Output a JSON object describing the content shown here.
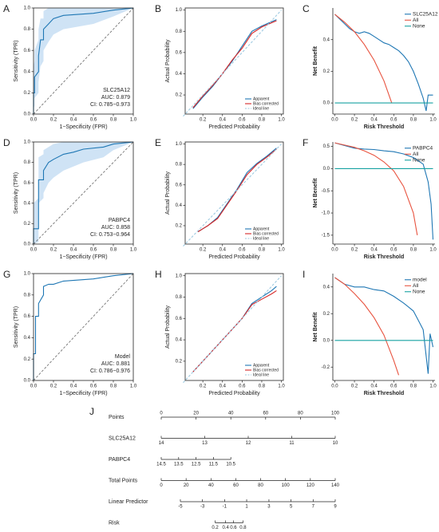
{
  "chart_data": [
    {
      "type": "roc",
      "panel": "A",
      "xlabel": "1−Specificity (FPR)",
      "ylabel": "Sensitivity (TPR)",
      "xlim": [
        0,
        1
      ],
      "ylim": [
        0,
        1
      ],
      "xticks": [
        {
          "value": 0,
          "label": "0.0"
        },
        0.2,
        0.4,
        0.6,
        0.8,
        {
          "value": 1,
          "label": "1.0"
        }
      ],
      "yticks": [
        {
          "value": 0,
          "label": "0.0"
        },
        0.2,
        0.4,
        0.6,
        0.8,
        {
          "value": 1,
          "label": "1.0"
        }
      ],
      "color": "#1f77b4",
      "band_color": "#cfe3f5",
      "x": [
        0,
        0,
        0.01,
        0.01,
        0.05,
        0.05,
        0.07,
        0.1,
        0.1,
        0.15,
        0.2,
        0.3,
        0.6,
        0.8,
        1
      ],
      "values": [
        0,
        0.2,
        0.2,
        0.35,
        0.4,
        0.55,
        0.7,
        0.7,
        0.8,
        0.85,
        0.9,
        0.93,
        0.95,
        0.98,
        1
      ],
      "band_lower": [
        0,
        0.05,
        0.08,
        0.15,
        0.2,
        0.3,
        0.45,
        0.5,
        0.6,
        0.68,
        0.75,
        0.8,
        0.85,
        0.92,
        1
      ],
      "band_upper": [
        0,
        0.45,
        0.5,
        0.6,
        0.7,
        0.8,
        0.9,
        0.9,
        0.97,
        1,
        1,
        1,
        1,
        1,
        1
      ],
      "annotations": [
        "SLC25A12",
        "AUC: 0.879",
        "CI: 0.785−0.973"
      ]
    },
    {
      "type": "calibration",
      "panel": "B",
      "xlabel": "Predicted Probability",
      "ylabel": "Actual Probability",
      "xlim": [
        0.02,
        1.02
      ],
      "ylim": [
        0.02,
        1.02
      ],
      "xticks": [
        0.2,
        0.4,
        0.6,
        0.8,
        {
          "value": 1,
          "label": "1.0"
        }
      ],
      "yticks": [
        0.2,
        0.4,
        0.6,
        0.8,
        {
          "value": 1,
          "label": "1.0"
        }
      ],
      "legend": "bottom-right",
      "series": [
        {
          "name": "Apparent",
          "color": "#1f77b4",
          "x": [
            0.1,
            0.2,
            0.3,
            0.4,
            0.5,
            0.6,
            0.7,
            0.8,
            0.9,
            0.95
          ],
          "values": [
            0.07,
            0.18,
            0.28,
            0.4,
            0.52,
            0.66,
            0.8,
            0.85,
            0.89,
            0.91
          ]
        },
        {
          "name": "Bias corrected",
          "color": "#d62728",
          "x": [
            0.1,
            0.2,
            0.3,
            0.4,
            0.5,
            0.6,
            0.7,
            0.8,
            0.9,
            0.95
          ],
          "values": [
            0.08,
            0.19,
            0.29,
            0.4,
            0.53,
            0.64,
            0.78,
            0.84,
            0.88,
            0.9
          ]
        },
        {
          "name": "Ideal line",
          "color": "#9ecae1",
          "dashed": true,
          "x": [
            0,
            1
          ],
          "values": [
            0,
            1
          ]
        }
      ]
    },
    {
      "type": "dca",
      "panel": "C",
      "xlabel": "Risk Threshold",
      "ylabel": "Net Benefit",
      "xlim": [
        -0.02,
        1.02
      ],
      "ylim": [
        -0.07,
        0.6
      ],
      "xticks": [
        {
          "value": 0,
          "label": "0.0"
        },
        0.2,
        0.4,
        0.6,
        0.8,
        {
          "value": 1,
          "label": "1.0"
        }
      ],
      "yticks": [
        {
          "value": 0,
          "label": "0.0"
        },
        0.2,
        0.4
      ],
      "legend": "top-right",
      "series": [
        {
          "name": "SLC25A12",
          "color": "#1f77b4",
          "x": [
            0,
            0.05,
            0.1,
            0.15,
            0.2,
            0.25,
            0.3,
            0.35,
            0.4,
            0.45,
            0.5,
            0.55,
            0.6,
            0.65,
            0.7,
            0.75,
            0.8,
            0.85,
            0.9,
            0.93,
            0.95,
            1
          ],
          "values": [
            0.56,
            0.53,
            0.5,
            0.47,
            0.45,
            0.44,
            0.45,
            0.44,
            0.42,
            0.4,
            0.38,
            0.37,
            0.35,
            0.33,
            0.3,
            0.26,
            0.2,
            0.12,
            0.03,
            -0.05,
            0.05,
            0.05
          ]
        },
        {
          "name": "All",
          "color": "#e8533f",
          "x": [
            0,
            0.1,
            0.2,
            0.3,
            0.4,
            0.5,
            0.58
          ],
          "values": [
            0.56,
            0.51,
            0.45,
            0.37,
            0.27,
            0.14,
            0
          ]
        },
        {
          "name": "None",
          "color": "#17a2a2",
          "x": [
            0,
            1
          ],
          "values": [
            0,
            0
          ]
        }
      ]
    },
    {
      "type": "roc",
      "panel": "D",
      "xlabel": "1−Specificity (FPR)",
      "ylabel": "Sensitivity (TPR)",
      "xlim": [
        0,
        1
      ],
      "ylim": [
        0,
        1
      ],
      "xticks": [
        {
          "value": 0,
          "label": "0.0"
        },
        0.2,
        0.4,
        0.6,
        0.8,
        {
          "value": 1,
          "label": "1.0"
        }
      ],
      "yticks": [
        {
          "value": 0,
          "label": "0.0"
        },
        0.2,
        0.4,
        0.6,
        0.8,
        {
          "value": 1,
          "label": "1.0"
        }
      ],
      "color": "#1f77b4",
      "band_color": "#cfe3f5",
      "x": [
        0,
        0,
        0.05,
        0.05,
        0.1,
        0.1,
        0.15,
        0.2,
        0.3,
        0.4,
        0.5,
        0.7,
        0.8,
        1
      ],
      "values": [
        0,
        0.15,
        0.15,
        0.63,
        0.63,
        0.72,
        0.8,
        0.83,
        0.88,
        0.9,
        0.93,
        0.95,
        0.98,
        1
      ],
      "band_lower": [
        0,
        0,
        0.02,
        0.4,
        0.45,
        0.5,
        0.6,
        0.65,
        0.72,
        0.76,
        0.8,
        0.85,
        0.92,
        1
      ],
      "band_upper": [
        0,
        0.4,
        0.45,
        0.85,
        0.88,
        0.92,
        0.95,
        0.98,
        1,
        1,
        1,
        1,
        1,
        1
      ],
      "annotations": [
        "PABPC4",
        "AUC: 0.858",
        "CI: 0.753−0.964"
      ]
    },
    {
      "type": "calibration",
      "panel": "E",
      "xlabel": "Predicted Probability",
      "ylabel": "Actual Probability",
      "xlim": [
        0.02,
        1.02
      ],
      "ylim": [
        0.02,
        1.02
      ],
      "xticks": [
        0.2,
        0.4,
        0.6,
        0.8,
        {
          "value": 1,
          "label": "1.0"
        }
      ],
      "yticks": [
        0.2,
        0.4,
        0.6,
        0.8,
        {
          "value": 1,
          "label": "1.0"
        }
      ],
      "legend": "bottom-right",
      "series": [
        {
          "name": "Apparent",
          "color": "#1f77b4",
          "x": [
            0.15,
            0.25,
            0.35,
            0.45,
            0.55,
            0.65,
            0.75,
            0.85,
            0.95
          ],
          "values": [
            0.14,
            0.2,
            0.28,
            0.42,
            0.56,
            0.72,
            0.81,
            0.88,
            0.96
          ]
        },
        {
          "name": "Bias corrected",
          "color": "#d62728",
          "x": [
            0.15,
            0.25,
            0.35,
            0.45,
            0.55,
            0.65,
            0.75,
            0.85,
            0.95
          ],
          "values": [
            0.14,
            0.2,
            0.27,
            0.41,
            0.55,
            0.7,
            0.8,
            0.87,
            0.95
          ]
        },
        {
          "name": "Ideal line",
          "color": "#9ecae1",
          "dashed": true,
          "x": [
            0,
            1
          ],
          "values": [
            0,
            1
          ]
        }
      ]
    },
    {
      "type": "dca",
      "panel": "F",
      "xlabel": "Risk Threshold",
      "ylabel": "Net Benefit",
      "xlim": [
        -0.02,
        1.02
      ],
      "ylim": [
        -1.7,
        0.6
      ],
      "xticks": [
        {
          "value": 0,
          "label": "0.0"
        },
        0.2,
        0.4,
        0.6,
        0.8,
        {
          "value": 1,
          "label": "1.0"
        }
      ],
      "yticks": [
        -1.5,
        {
          "value": -1,
          "label": "-1.0"
        },
        -0.5,
        {
          "value": 0,
          "label": "0.0"
        },
        0.5
      ],
      "legend": "top-right",
      "series": [
        {
          "name": "PABPC4",
          "color": "#1f77b4",
          "x": [
            0,
            0.1,
            0.2,
            0.3,
            0.4,
            0.5,
            0.6,
            0.7,
            0.8,
            0.9,
            0.95,
            0.98,
            1
          ],
          "values": [
            0.58,
            0.52,
            0.46,
            0.44,
            0.43,
            0.4,
            0.38,
            0.33,
            0.25,
            0.1,
            -0.3,
            -0.8,
            -1.6
          ]
        },
        {
          "name": "All",
          "color": "#e8533f",
          "x": [
            0,
            0.1,
            0.2,
            0.3,
            0.4,
            0.5,
            0.6,
            0.7,
            0.8,
            0.84
          ],
          "values": [
            0.58,
            0.53,
            0.48,
            0.4,
            0.3,
            0.15,
            -0.05,
            -0.4,
            -1.0,
            -1.5
          ]
        },
        {
          "name": "None",
          "color": "#17a2a2",
          "x": [
            0,
            1
          ],
          "values": [
            0,
            0
          ]
        }
      ]
    },
    {
      "type": "roc",
      "panel": "G",
      "xlabel": "1−Specificity (FPR)",
      "ylabel": "Sensitivity (TPR)",
      "xlim": [
        0,
        1
      ],
      "ylim": [
        0,
        1
      ],
      "xticks": [
        {
          "value": 0,
          "label": "0.0"
        },
        0.2,
        0.4,
        0.6,
        0.8,
        {
          "value": 1,
          "label": "1.0"
        }
      ],
      "yticks": [
        {
          "value": 0,
          "label": "0.0"
        },
        0.2,
        0.4,
        0.6,
        0.8,
        {
          "value": 1,
          "label": "1.0"
        }
      ],
      "color": "#1f77b4",
      "x": [
        0,
        0,
        0.02,
        0.02,
        0.05,
        0.05,
        0.1,
        0.1,
        0.15,
        0.2,
        0.3,
        0.6,
        0.8,
        1
      ],
      "values": [
        0,
        0.25,
        0.25,
        0.6,
        0.6,
        0.72,
        0.8,
        0.88,
        0.9,
        0.9,
        0.93,
        0.95,
        0.98,
        1
      ],
      "annotations": [
        "Model",
        "AUC: 0.881",
        "CI: 0.786−0.976"
      ]
    },
    {
      "type": "calibration",
      "panel": "H",
      "xlabel": "Predicted Probability",
      "ylabel": "Actual Probability",
      "xlim": [
        0.02,
        1.02
      ],
      "ylim": [
        0.02,
        1.02
      ],
      "xticks": [
        0.2,
        0.4,
        0.6,
        0.8,
        {
          "value": 1,
          "label": "1.0"
        }
      ],
      "yticks": [
        0.2,
        0.4,
        0.6,
        0.8,
        {
          "value": 1,
          "label": "1.0"
        }
      ],
      "legend": "bottom-right",
      "series": [
        {
          "name": "Apparent",
          "color": "#1f77b4",
          "x": [
            0.1,
            0.2,
            0.3,
            0.4,
            0.5,
            0.6,
            0.7,
            0.8,
            0.9,
            0.95
          ],
          "values": [
            0.1,
            0.2,
            0.3,
            0.4,
            0.5,
            0.6,
            0.74,
            0.8,
            0.86,
            0.9
          ]
        },
        {
          "name": "Bias corrected",
          "color": "#d62728",
          "x": [
            0.1,
            0.2,
            0.3,
            0.4,
            0.5,
            0.6,
            0.7,
            0.8,
            0.9,
            0.95
          ],
          "values": [
            0.1,
            0.2,
            0.3,
            0.4,
            0.5,
            0.6,
            0.73,
            0.78,
            0.83,
            0.86
          ]
        },
        {
          "name": "Ideal line",
          "color": "#9ecae1",
          "dashed": true,
          "x": [
            0,
            1
          ],
          "values": [
            0,
            1
          ]
        }
      ]
    },
    {
      "type": "dca",
      "panel": "I",
      "xlabel": "Risk Threshold",
      "ylabel": "Net Benefit",
      "xlim": [
        -0.02,
        1.02
      ],
      "ylim": [
        -0.3,
        0.5
      ],
      "xticks": [
        {
          "value": 0,
          "label": "0.0"
        },
        0.2,
        0.4,
        0.6,
        0.8,
        {
          "value": 1,
          "label": "1.0"
        }
      ],
      "yticks": [
        -0.2,
        {
          "value": 0,
          "label": "0.0"
        },
        0.2,
        0.4
      ],
      "legend": "top-right",
      "series": [
        {
          "name": "model",
          "color": "#1f77b4",
          "x": [
            0,
            0.1,
            0.2,
            0.3,
            0.4,
            0.5,
            0.6,
            0.7,
            0.8,
            0.85,
            0.9,
            0.95,
            0.97,
            1
          ],
          "values": [
            0.47,
            0.42,
            0.4,
            0.4,
            0.38,
            0.37,
            0.33,
            0.28,
            0.22,
            0.15,
            0.08,
            -0.25,
            0.05,
            -0.05
          ]
        },
        {
          "name": "All",
          "color": "#e8533f",
          "x": [
            0,
            0.1,
            0.2,
            0.3,
            0.4,
            0.5,
            0.6,
            0.65
          ],
          "values": [
            0.47,
            0.42,
            0.35,
            0.27,
            0.17,
            0.04,
            -0.15,
            -0.26
          ]
        },
        {
          "name": "None",
          "color": "#17a2a2",
          "x": [
            0,
            1
          ],
          "values": [
            0,
            0
          ]
        }
      ]
    },
    {
      "type": "nomogram",
      "panel": "J",
      "points_lim": [
        0,
        100
      ],
      "scales": [
        {
          "name": "Points",
          "ticks": [
            0,
            20,
            40,
            60,
            80,
            100
          ],
          "positions": [
            0,
            20,
            40,
            60,
            80,
            100
          ]
        },
        {
          "name": "SLC25A12",
          "ticks": [
            14,
            13,
            12,
            11,
            10
          ],
          "positions": [
            0,
            25,
            50,
            75,
            100
          ]
        },
        {
          "name": "PABPC4",
          "ticks": [
            14.5,
            13.5,
            12.5,
            11.5,
            10.5
          ],
          "positions": [
            0,
            10,
            20,
            30,
            40
          ]
        },
        {
          "name": "Total Points",
          "ticks": [
            0,
            20,
            40,
            60,
            80,
            100,
            120,
            140
          ],
          "positions": [
            0,
            14.3,
            28.6,
            42.9,
            57.1,
            71.4,
            85.7,
            100
          ]
        },
        {
          "name": "Linear Predictor",
          "ticks": [
            -5,
            -3,
            -1,
            1,
            3,
            5,
            7,
            9
          ],
          "positions": [
            11,
            23.7,
            36.4,
            49.1,
            61.9,
            74.6,
            87.3,
            100
          ]
        },
        {
          "name": "Risk",
          "ticks": [
            0.2,
            0.4,
            0.6,
            0.8
          ],
          "positions": [
            31,
            37,
            41.5,
            47
          ]
        }
      ]
    }
  ]
}
